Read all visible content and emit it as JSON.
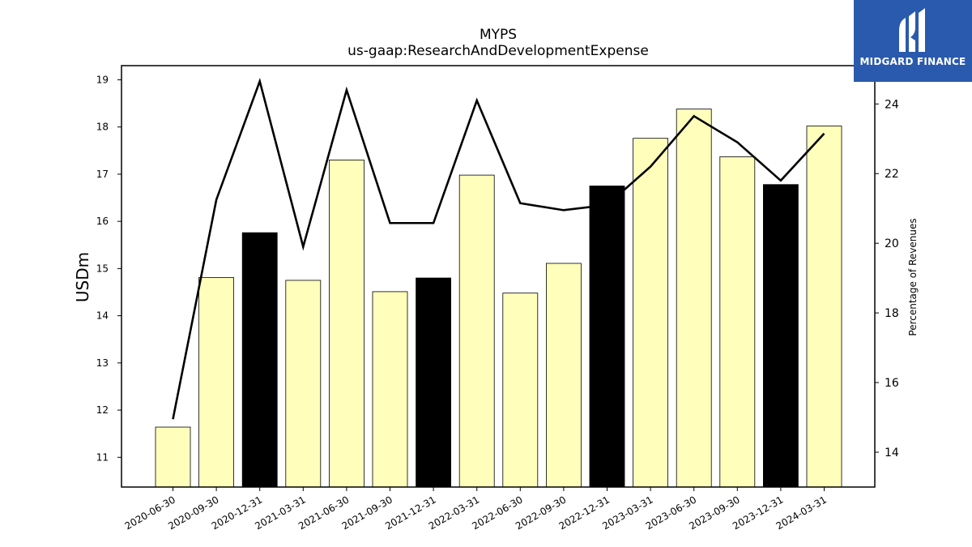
{
  "chart_data": {
    "type": "bar",
    "title": "MYPS",
    "subtitle": "us-gaap:ResearchAndDevelopmentExpense",
    "ylabel": "USDm",
    "y2label": "Percentage of Revenues",
    "ylim": [
      10.37,
      19.3
    ],
    "y2lim": [
      13.0,
      25.1
    ],
    "yticks": [
      11,
      12,
      13,
      14,
      15,
      16,
      17,
      18,
      19
    ],
    "y2ticks": [
      14,
      16,
      18,
      20,
      22,
      24
    ],
    "categories": [
      "2020-06-30",
      "2020-09-30",
      "2020-12-31",
      "2021-03-31",
      "2021-06-30",
      "2021-09-30",
      "2021-12-31",
      "2022-03-31",
      "2022-06-30",
      "2022-09-30",
      "2022-12-31",
      "2023-03-31",
      "2023-06-30",
      "2023-09-30",
      "2023-12-31",
      "2024-03-31"
    ],
    "series": [
      {
        "type": "bar",
        "axis": "left",
        "values": [
          11.64,
          14.81,
          15.76,
          14.75,
          17.3,
          14.51,
          14.8,
          16.98,
          14.48,
          15.11,
          16.75,
          17.76,
          18.38,
          17.37,
          16.78,
          18.02
        ],
        "colors": [
          "#ffffbb",
          "#ffffbb",
          "#000000",
          "#ffffbb",
          "#ffffbb",
          "#ffffbb",
          "#000000",
          "#ffffbb",
          "#ffffbb",
          "#ffffbb",
          "#000000",
          "#ffffbb",
          "#ffffbb",
          "#ffffbb",
          "#000000",
          "#ffffbb"
        ]
      },
      {
        "type": "line",
        "axis": "right",
        "color": "#000000",
        "values": [
          14.95,
          21.25,
          24.65,
          19.9,
          24.4,
          20.58,
          20.58,
          24.1,
          21.15,
          20.95,
          21.1,
          22.2,
          23.65,
          22.9,
          21.8,
          23.15
        ]
      }
    ],
    "grid": false
  },
  "logo": {
    "text": "MIDGARD FINANCE",
    "icon": "midgard-logo-icon",
    "background": "#2a5aad"
  }
}
